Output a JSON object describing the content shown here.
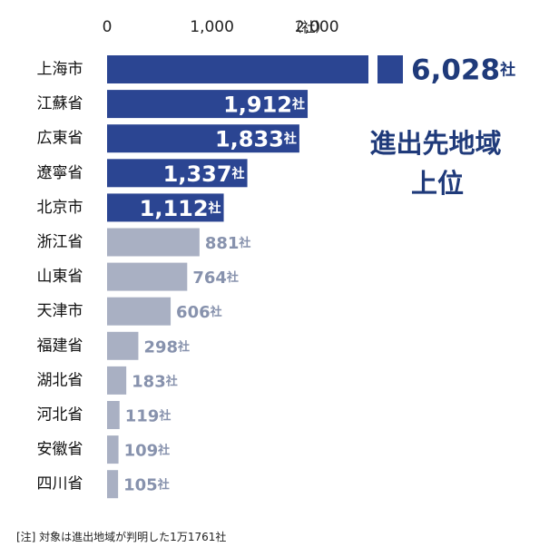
{
  "chart_data": {
    "type": "bar",
    "orientation": "horizontal",
    "unit_label": "（社）",
    "value_suffix": "社",
    "x_ticks": [
      "0",
      "1,000",
      "2,000"
    ],
    "xlim": [
      0,
      2000
    ],
    "axis_break_after": 2000,
    "categories": [
      "上海市",
      "江蘇省",
      "広東省",
      "遼寧省",
      "北京市",
      "浙江省",
      "山東省",
      "天津市",
      "福建省",
      "湖北省",
      "河北省",
      "安徽省",
      "四川省"
    ],
    "values": [
      6028,
      1912,
      1833,
      1337,
      1112,
      881,
      764,
      606,
      298,
      183,
      119,
      109,
      105
    ],
    "value_labels": [
      "6,028",
      "1,912",
      "1,833",
      "1,337",
      "1,112",
      "881",
      "764",
      "606",
      "298",
      "183",
      "119",
      "109",
      "105"
    ],
    "highlight_count": 5,
    "colors": {
      "highlight": "#2b4592",
      "other": "#a9b0c3",
      "highlight_text": "#1f3a7a",
      "other_text": "#8792ad"
    },
    "annotation_lines": [
      "進出先地域",
      "上位"
    ],
    "note": "[注] 対象は進出地域が判明した1万1761社"
  }
}
